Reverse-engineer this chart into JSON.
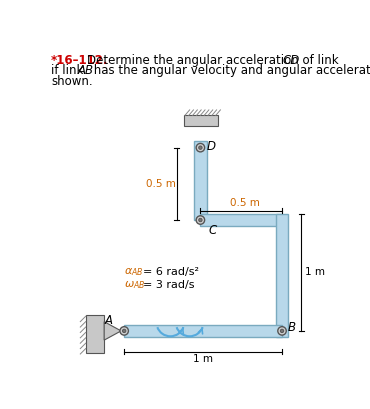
{
  "bg_color": "#ffffff",
  "link_color": "#b8d8ea",
  "link_edge_color": "#7aaabf",
  "pin_color_outer": "#c8c8c8",
  "pin_color_inner": "#888888",
  "wall_color": "#c8c8c8",
  "dim_color": "#000000",
  "arrow_color": "#55aadd",
  "text_color": "#000000",
  "orange_color": "#cc6600",
  "red_color": "#cc0000",
  "label_A": "A",
  "label_B": "B",
  "label_C": "C",
  "label_D": "D",
  "dim_05_v": "0.5 m",
  "dim_05_h": "0.5 m",
  "dim_1_v": "1 m",
  "dim_1_h": "1 m",
  "alpha_text": "= 6 rad/s",
  "omega_text": "= 3 rad/s"
}
